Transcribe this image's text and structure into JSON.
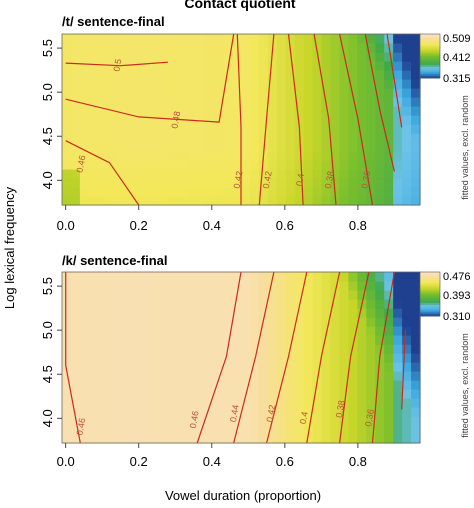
{
  "figure": {
    "title": "Contact quotient",
    "xlabel": "Vowel duration (proportion)",
    "ylabel": "Log lexical frequency"
  },
  "chart_data": [
    {
      "type": "heatmap",
      "title": "/t/ sentence-final",
      "xlabel": "Vowel duration (proportion)",
      "ylabel": "Log lexical frequency",
      "xlim": [
        -0.01,
        0.97
      ],
      "ylim": [
        3.72,
        5.66
      ],
      "x_ticks": [
        "0.0",
        "0.2",
        "0.4",
        "0.6",
        "0.8"
      ],
      "y_ticks": [
        "4.0",
        "4.5",
        "5.0",
        "5.5"
      ],
      "colorbar": {
        "max": "0.509",
        "mid": "0.412",
        "min": "0.315",
        "label": "fitted values, excl. random"
      },
      "contour_labels": [
        "0.5",
        "0.48",
        "0.46",
        "0.42",
        "0.42",
        "0.4",
        "0.38",
        "0.36"
      ],
      "grid": false,
      "legend": "right (colour bar)"
    },
    {
      "type": "heatmap",
      "title": "/k/ sentence-final",
      "xlabel": "Vowel duration (proportion)",
      "ylabel": "Log lexical frequency",
      "xlim": [
        -0.01,
        0.97
      ],
      "ylim": [
        3.72,
        5.66
      ],
      "x_ticks": [
        "0.0",
        "0.2",
        "0.4",
        "0.6",
        "0.8"
      ],
      "y_ticks": [
        "4.0",
        "4.5",
        "5.0",
        "5.5"
      ],
      "colorbar": {
        "max": "0.476",
        "mid": "0.393",
        "min": "0.310",
        "label": "fitted values, excl. random"
      },
      "contour_labels": [
        "0.46",
        "0.46",
        "0.44",
        "0.42",
        "0.4",
        "0.38",
        "0.36",
        "0.34"
      ],
      "grid": false,
      "legend": "right (colour bar)"
    }
  ]
}
